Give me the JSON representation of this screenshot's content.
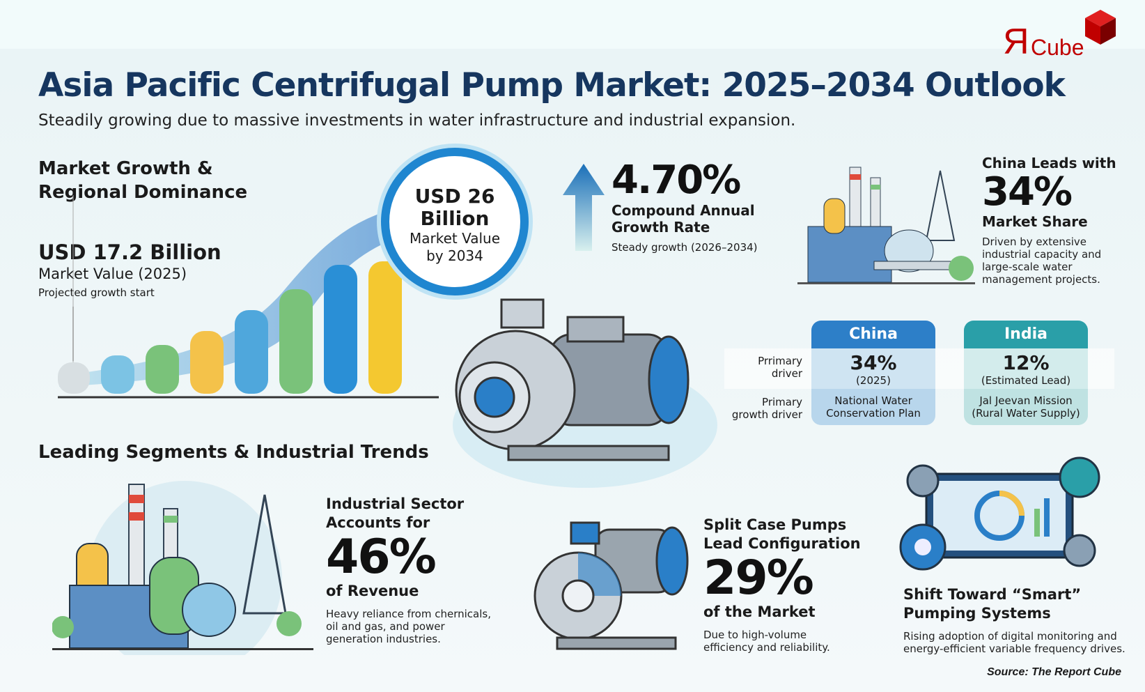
{
  "logo": {
    "text": "ЯCube",
    "mark": "Я",
    "word": "Cube",
    "color": "#c00000"
  },
  "title": "Asia Pacific Centrifugal Pump Market: 2025–2034 Outlook",
  "subtitle": "Steadily growing due to massive investments in water infrastructure and industrial expansion.",
  "growth": {
    "heading_line1": "Market Growth &",
    "heading_line2": "Regional Dominance",
    "start_value": "USD 17.2 Billion",
    "start_label": "Market Value (2025)",
    "start_note": "Projected growth start",
    "end_value_line1": "USD 26",
    "end_value_line2": "Billion",
    "end_label_line1": "Market Value",
    "end_label_line2": "by 2034"
  },
  "cagr": {
    "value": "4.70%",
    "label_line1": "Compound Annual",
    "label_line2": "Growth Rate",
    "note": "Steady growth (2026–2034)",
    "icon": "arrow-up-icon"
  },
  "china_lead": {
    "line1": "China Leads with",
    "value": "34%",
    "line2": "Market Share",
    "desc": "Driven by extensive industrial capacity and large-scale water management projects."
  },
  "table": {
    "row_labels": [
      [
        "Prrimary",
        "driver"
      ],
      [
        "Primary",
        "growth driver"
      ]
    ],
    "columns": [
      {
        "name": "China",
        "value": "34%",
        "sub": "(2025)",
        "driver_line1": "National Water",
        "driver_line2": "Conservation Plan",
        "color": "#2d7fc8"
      },
      {
        "name": "India",
        "value": "12%",
        "sub": "(Estimated Lead)",
        "driver_line1": "Jal Jeevan Mission",
        "driver_line2": "(Rural Water Supply)",
        "color": "#2a9fa8"
      }
    ]
  },
  "segments": {
    "heading": "Leading Segments & Industrial Trends",
    "industrial": {
      "line1": "Industrial Sector",
      "line2": "Accounts for",
      "value": "46%",
      "line3": "of Revenue",
      "desc": "Heavy reliance from chernicals, oil and gas, and power generation industries."
    },
    "split": {
      "line1": "Split Case Pumps",
      "line2": "Lead Configuration",
      "value": "29%",
      "line3": "of the Market",
      "desc": "Due to high-volume efficiency and reliability."
    },
    "smart": {
      "line1": "Shift Toward “Smart”",
      "line2": "Pumping Systems",
      "desc": "Rising adoption of digital monitoring and energy-efficient variable frequency drives."
    }
  },
  "source": "Source: The Report Cube"
}
